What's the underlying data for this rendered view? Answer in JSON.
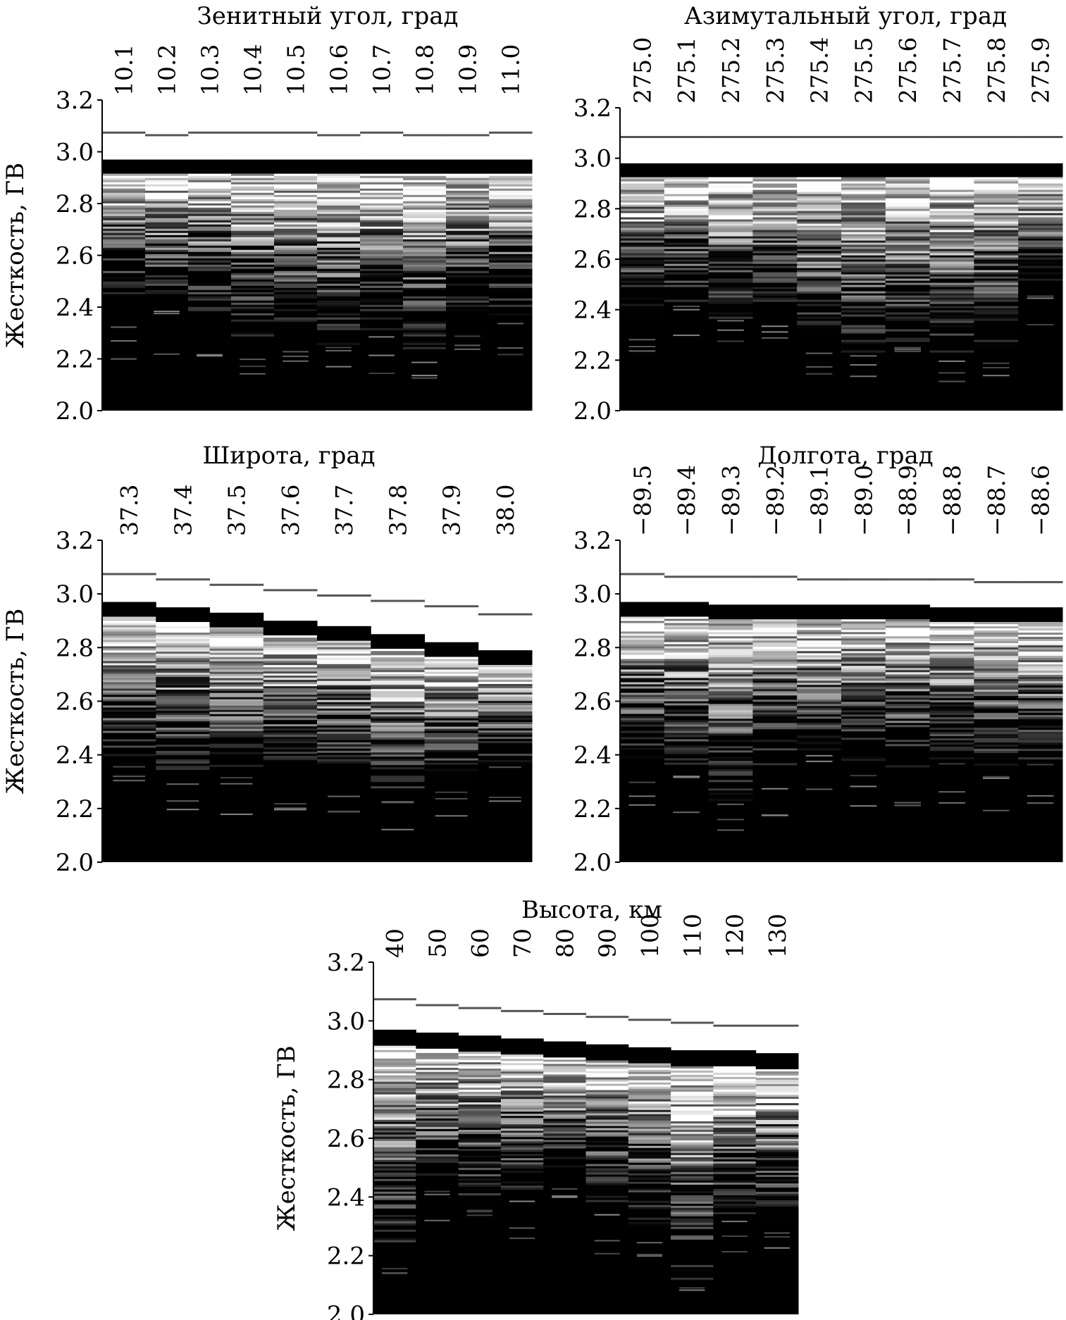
{
  "chart_data": [
    {
      "type": "heatmap",
      "title": "Зенитный угол, град",
      "ylabel": "Жесткость, ГВ",
      "categories": [
        "10.1",
        "10.2",
        "10.3",
        "10.4",
        "10.5",
        "10.6",
        "10.7",
        "10.8",
        "10.9",
        "11.0"
      ],
      "ylim": [
        2.0,
        3.2
      ],
      "yticks": [
        "2.0",
        "2.2",
        "2.4",
        "2.6",
        "2.8",
        "3.0",
        "3.2"
      ],
      "upper_cutoff": [
        3.07,
        3.06,
        3.07,
        3.07,
        3.07,
        3.06,
        3.07,
        3.06,
        3.06,
        3.07
      ],
      "penumbra_top": [
        2.97,
        2.97,
        2.97,
        2.97,
        2.97,
        2.97,
        2.97,
        2.97,
        2.97,
        2.97
      ],
      "lower_cutoff": [
        2.4,
        2.4,
        2.38,
        2.28,
        2.33,
        2.25,
        2.29,
        2.22,
        2.37,
        2.37
      ]
    },
    {
      "type": "heatmap",
      "title": "Азимутальный угол, град",
      "ylabel": "",
      "categories": [
        "275.0",
        "275.1",
        "275.2",
        "275.3",
        "275.4",
        "275.5",
        "275.6",
        "275.7",
        "275.8",
        "275.9"
      ],
      "ylim": [
        2.0,
        3.2
      ],
      "yticks": [
        "2.0",
        "2.2",
        "2.4",
        "2.6",
        "2.8",
        "3.0",
        "3.2"
      ],
      "upper_cutoff": [
        3.08,
        3.08,
        3.08,
        3.08,
        3.08,
        3.08,
        3.08,
        3.08,
        3.08,
        3.08
      ],
      "penumbra_top": [
        2.98,
        2.98,
        2.98,
        2.98,
        2.98,
        2.98,
        2.98,
        2.98,
        2.98,
        2.98
      ],
      "lower_cutoff": [
        2.37,
        2.42,
        2.37,
        2.43,
        2.28,
        2.22,
        2.27,
        2.22,
        2.25,
        2.5
      ]
    },
    {
      "type": "heatmap",
      "title": "Широта, град",
      "ylabel": "Жесткость, ГВ",
      "categories": [
        "37.3",
        "37.4",
        "37.5",
        "37.6",
        "37.7",
        "37.8",
        "37.9",
        "38.0"
      ],
      "ylim": [
        2.0,
        3.2
      ],
      "yticks": [
        "2.0",
        "2.2",
        "2.4",
        "2.6",
        "2.8",
        "3.0",
        "3.2"
      ],
      "upper_cutoff": [
        3.07,
        3.05,
        3.03,
        3.01,
        2.99,
        2.97,
        2.95,
        2.92
      ],
      "penumbra_top": [
        2.97,
        2.95,
        2.93,
        2.9,
        2.88,
        2.85,
        2.82,
        2.79
      ],
      "lower_cutoff": [
        2.36,
        2.34,
        2.32,
        2.35,
        2.33,
        2.24,
        2.29,
        2.36
      ]
    },
    {
      "type": "heatmap",
      "title": "Долгота, град",
      "ylabel": "",
      "categories": [
        "−89.5",
        "−89.4",
        "−89.3",
        "−89.2",
        "−89.1",
        "−89.0",
        "−88.9",
        "−88.8",
        "−88.7",
        "−88.6"
      ],
      "ylim": [
        2.0,
        3.2
      ],
      "yticks": [
        "2.0",
        "2.2",
        "2.4",
        "2.6",
        "2.8",
        "3.0",
        "3.2"
      ],
      "upper_cutoff": [
        3.07,
        3.06,
        3.06,
        3.06,
        3.05,
        3.05,
        3.05,
        3.05,
        3.04,
        3.04
      ],
      "penumbra_top": [
        2.97,
        2.97,
        2.96,
        2.96,
        2.96,
        2.96,
        2.96,
        2.95,
        2.95,
        2.95
      ],
      "lower_cutoff": [
        2.38,
        2.37,
        2.22,
        2.31,
        2.4,
        2.36,
        2.36,
        2.38,
        2.34,
        2.37
      ]
    },
    {
      "type": "heatmap",
      "title": "Высота, км",
      "ylabel": "Жесткость, ГВ",
      "categories": [
        "40",
        "50",
        "60",
        "70",
        "80",
        "90",
        "100",
        "110",
        "120",
        "130"
      ],
      "ylim": [
        2.0,
        3.2
      ],
      "yticks": [
        "2.0",
        "2.2",
        "2.4",
        "2.6",
        "2.8",
        "3.0",
        "3.2"
      ],
      "upper_cutoff": [
        3.07,
        3.05,
        3.04,
        3.03,
        3.02,
        3.01,
        3.0,
        2.99,
        2.98,
        2.98
      ],
      "penumbra_top": [
        2.97,
        2.96,
        2.95,
        2.94,
        2.93,
        2.92,
        2.91,
        2.9,
        2.9,
        2.89
      ],
      "lower_cutoff": [
        2.2,
        2.43,
        2.38,
        2.4,
        2.46,
        2.38,
        2.3,
        2.12,
        2.34,
        2.32
      ]
    }
  ]
}
